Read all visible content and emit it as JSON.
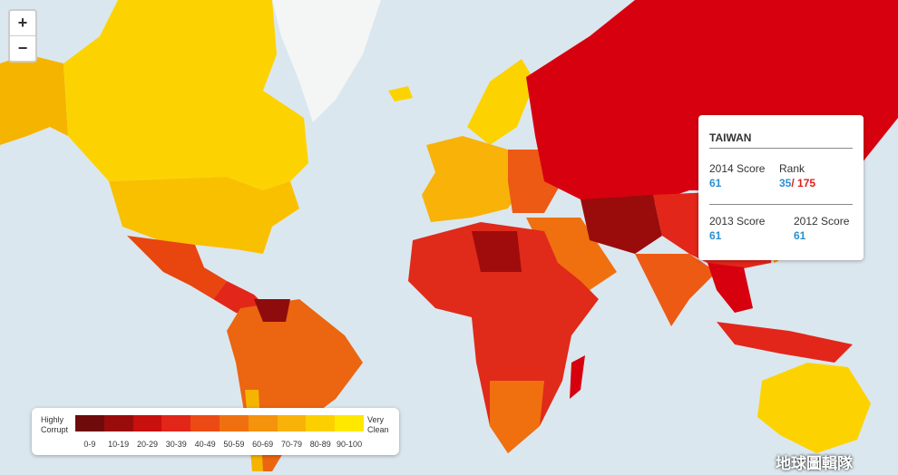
{
  "zoom_controls": {
    "zoom_in": "+",
    "zoom_out": "−"
  },
  "tooltip": {
    "country": "TAIWAN",
    "score_2014_label": "2014 Score",
    "score_2014": 61,
    "rank_label": "Rank",
    "rank": 35,
    "rank_total": "/ 175",
    "score_2013_label": "2013 Score",
    "score_2013": 61,
    "score_2012_label": "2012 Score",
    "score_2012": 61
  },
  "legend": {
    "low_label": "Highly\nCorrupt",
    "high_label": "Very\nClean",
    "bins": [
      {
        "label": "0-9",
        "color": "#6e0b0b"
      },
      {
        "label": "10-19",
        "color": "#9a0c0c"
      },
      {
        "label": "20-29",
        "color": "#c8100f"
      },
      {
        "label": "30-39",
        "color": "#e3261a"
      },
      {
        "label": "40-49",
        "color": "#ec4a14"
      },
      {
        "label": "50-59",
        "color": "#f0700f"
      },
      {
        "label": "60-69",
        "color": "#f5930c"
      },
      {
        "label": "70-79",
        "color": "#f8b208"
      },
      {
        "label": "80-89",
        "color": "#fcd000"
      },
      {
        "label": "90-100",
        "color": "#ffe800"
      }
    ]
  },
  "watermark": "地球圖輯隊"
}
